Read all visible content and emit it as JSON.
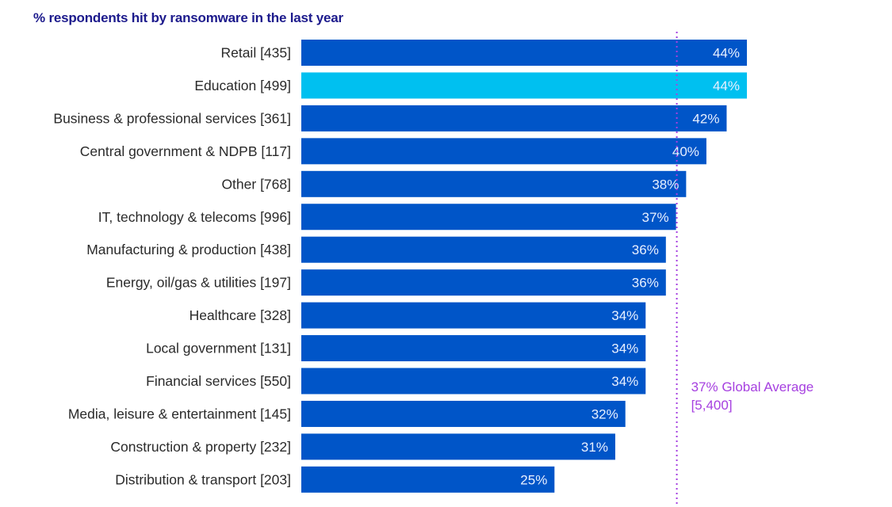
{
  "chart_data": {
    "type": "bar",
    "orientation": "horizontal",
    "title": "% respondents hit by ransomware in the last year",
    "xlabel": "",
    "ylabel": "",
    "xlim": [
      0,
      44
    ],
    "grid": false,
    "categories": [
      "Retail [435]",
      "Education [499]",
      "Business & professional services [361]",
      "Central government & NDPB [117]",
      "Other [768]",
      "IT, technology & telecoms [996]",
      "Manufacturing & production [438]",
      "Energy, oil/gas & utilities [197]",
      "Healthcare [328]",
      "Local government [131]",
      "Financial services [550]",
      "Media, leisure & entertainment [145]",
      "Construction & property [232]",
      "Distribution & transport [203]"
    ],
    "values": [
      44,
      44,
      42,
      40,
      38,
      37,
      36,
      36,
      34,
      34,
      34,
      32,
      31,
      25
    ],
    "value_labels": [
      "44%",
      "44%",
      "42%",
      "40%",
      "38%",
      "37%",
      "36%",
      "36%",
      "34%",
      "34%",
      "34%",
      "32%",
      "31%",
      "25%"
    ],
    "highlight_index": 1,
    "reference_line": {
      "value": 37,
      "label_line1": "37% Global Average",
      "label_line2": "[5,400]",
      "style": "dotted"
    },
    "colors": {
      "bar": "#0055c8",
      "highlight": "#00c0f0",
      "reference": "#a640e0",
      "title": "#1c1a8c"
    }
  }
}
